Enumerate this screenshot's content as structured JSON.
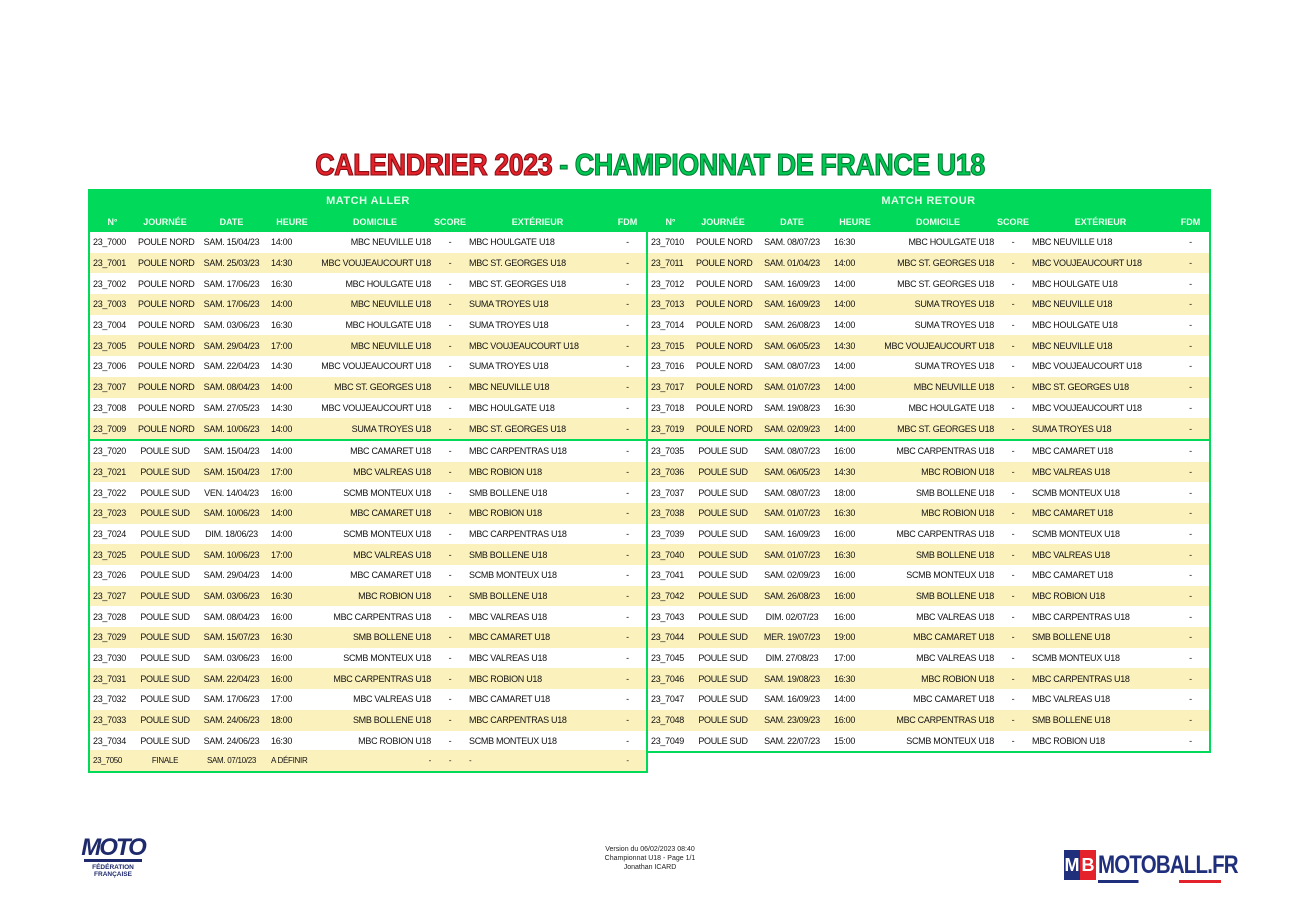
{
  "title": {
    "part1": "CALENDRIER 2023",
    "dash": " - ",
    "part2": "CHAMPIONNAT DE FRANCE U18"
  },
  "aller": {
    "label": "MATCH ALLER",
    "headers": [
      "N°",
      "JOURNÉE",
      "DATE",
      "HEURE",
      "DOMICILE",
      "SCORE",
      "EXTÉRIEUR",
      "FDM"
    ],
    "rows": [
      [
        "23_7000",
        "POULE NORD",
        "SAM. 15/04/23",
        "14:00",
        "MBC NEUVILLE U18",
        "-",
        "MBC HOULGATE U18",
        "-"
      ],
      [
        "23_7001",
        "POULE NORD",
        "SAM. 25/03/23",
        "14:30",
        "MBC VOUJEAUCOURT U18",
        "-",
        "MBC ST. GEORGES U18",
        "-"
      ],
      [
        "23_7002",
        "POULE NORD",
        "SAM. 17/06/23",
        "16:30",
        "MBC HOULGATE U18",
        "-",
        "MBC ST. GEORGES U18",
        "-"
      ],
      [
        "23_7003",
        "POULE NORD",
        "SAM. 17/06/23",
        "14:00",
        "MBC NEUVILLE U18",
        "-",
        "SUMA TROYES U18",
        "-"
      ],
      [
        "23_7004",
        "POULE NORD",
        "SAM. 03/06/23",
        "16:30",
        "MBC HOULGATE U18",
        "-",
        "SUMA TROYES U18",
        "-"
      ],
      [
        "23_7005",
        "POULE NORD",
        "SAM. 29/04/23",
        "17:00",
        "MBC NEUVILLE U18",
        "-",
        "MBC VOUJEAUCOURT U18",
        "-"
      ],
      [
        "23_7006",
        "POULE NORD",
        "SAM. 22/04/23",
        "14:30",
        "MBC VOUJEAUCOURT U18",
        "-",
        "SUMA TROYES U18",
        "-"
      ],
      [
        "23_7007",
        "POULE NORD",
        "SAM. 08/04/23",
        "14:00",
        "MBC ST. GEORGES U18",
        "-",
        "MBC NEUVILLE U18",
        "-"
      ],
      [
        "23_7008",
        "POULE NORD",
        "SAM. 27/05/23",
        "14:30",
        "MBC VOUJEAUCOURT U18",
        "-",
        "MBC HOULGATE U18",
        "-"
      ],
      [
        "23_7009",
        "POULE NORD",
        "SAM. 10/06/23",
        "14:00",
        "SUMA TROYES U18",
        "-",
        "MBC ST. GEORGES U18",
        "-"
      ],
      [
        "23_7020",
        "POULE SUD",
        "SAM. 15/04/23",
        "14:00",
        "MBC CAMARET U18",
        "-",
        "MBC CARPENTRAS U18",
        "-"
      ],
      [
        "23_7021",
        "POULE SUD",
        "SAM. 15/04/23",
        "17:00",
        "MBC VALREAS U18",
        "-",
        "MBC ROBION U18",
        "-"
      ],
      [
        "23_7022",
        "POULE SUD",
        "VEN. 14/04/23",
        "16:00",
        "SCMB MONTEUX U18",
        "-",
        "SMB BOLLENE U18",
        "-"
      ],
      [
        "23_7023",
        "POULE SUD",
        "SAM. 10/06/23",
        "14:00",
        "MBC CAMARET U18",
        "-",
        "MBC ROBION U18",
        "-"
      ],
      [
        "23_7024",
        "POULE SUD",
        "DIM. 18/06/23",
        "14:00",
        "SCMB MONTEUX U18",
        "-",
        "MBC CARPENTRAS U18",
        "-"
      ],
      [
        "23_7025",
        "POULE SUD",
        "SAM. 10/06/23",
        "17:00",
        "MBC VALREAS U18",
        "-",
        "SMB BOLLENE U18",
        "-"
      ],
      [
        "23_7026",
        "POULE SUD",
        "SAM. 29/04/23",
        "14:00",
        "MBC CAMARET U18",
        "-",
        "SCMB MONTEUX U18",
        "-"
      ],
      [
        "23_7027",
        "POULE SUD",
        "SAM. 03/06/23",
        "16:30",
        "MBC ROBION U18",
        "-",
        "SMB BOLLENE U18",
        "-"
      ],
      [
        "23_7028",
        "POULE SUD",
        "SAM. 08/04/23",
        "16:00",
        "MBC CARPENTRAS U18",
        "-",
        "MBC VALREAS U18",
        "-"
      ],
      [
        "23_7029",
        "POULE SUD",
        "SAM. 15/07/23",
        "16:30",
        "SMB BOLLENE U18",
        "-",
        "MBC CAMARET U18",
        "-"
      ],
      [
        "23_7030",
        "POULE SUD",
        "SAM. 03/06/23",
        "16:00",
        "SCMB MONTEUX U18",
        "-",
        "MBC VALREAS U18",
        "-"
      ],
      [
        "23_7031",
        "POULE SUD",
        "SAM. 22/04/23",
        "16:00",
        "MBC CARPENTRAS U18",
        "-",
        "MBC ROBION U18",
        "-"
      ],
      [
        "23_7032",
        "POULE SUD",
        "SAM. 17/06/23",
        "17:00",
        "MBC VALREAS U18",
        "-",
        "MBC CAMARET U18",
        "-"
      ],
      [
        "23_7033",
        "POULE SUD",
        "SAM. 24/06/23",
        "18:00",
        "SMB BOLLENE U18",
        "-",
        "MBC CARPENTRAS U18",
        "-"
      ],
      [
        "23_7034",
        "POULE SUD",
        "SAM. 24/06/23",
        "16:30",
        "MBC ROBION U18",
        "-",
        "SCMB MONTEUX U18",
        "-"
      ]
    ],
    "finale": [
      "23_7050",
      "FINALE",
      "SAM. 07/10/23",
      "A DÉFINIR",
      "-",
      "-",
      "-",
      "-"
    ]
  },
  "retour": {
    "label": "MATCH RETOUR",
    "headers": [
      "N°",
      "JOURNÉE",
      "DATE",
      "HEURE",
      "DOMICILE",
      "SCORE",
      "EXTÉRIEUR",
      "FDM"
    ],
    "rows": [
      [
        "23_7010",
        "POULE NORD",
        "SAM. 08/07/23",
        "16:30",
        "MBC HOULGATE U18",
        "-",
        "MBC NEUVILLE U18",
        "-"
      ],
      [
        "23_7011",
        "POULE NORD",
        "SAM. 01/04/23",
        "14:00",
        "MBC ST. GEORGES U18",
        "-",
        "MBC VOUJEAUCOURT U18",
        "-"
      ],
      [
        "23_7012",
        "POULE NORD",
        "SAM. 16/09/23",
        "14:00",
        "MBC ST. GEORGES U18",
        "-",
        "MBC HOULGATE U18",
        "-"
      ],
      [
        "23_7013",
        "POULE NORD",
        "SAM. 16/09/23",
        "14:00",
        "SUMA TROYES U18",
        "-",
        "MBC NEUVILLE U18",
        "-"
      ],
      [
        "23_7014",
        "POULE NORD",
        "SAM. 26/08/23",
        "14:00",
        "SUMA TROYES U18",
        "-",
        "MBC HOULGATE U18",
        "-"
      ],
      [
        "23_7015",
        "POULE NORD",
        "SAM. 06/05/23",
        "14:30",
        "MBC VOUJEAUCOURT U18",
        "-",
        "MBC NEUVILLE U18",
        "-"
      ],
      [
        "23_7016",
        "POULE NORD",
        "SAM. 08/07/23",
        "14:00",
        "SUMA TROYES U18",
        "-",
        "MBC VOUJEAUCOURT U18",
        "-"
      ],
      [
        "23_7017",
        "POULE NORD",
        "SAM. 01/07/23",
        "14:00",
        "MBC NEUVILLE U18",
        "-",
        "MBC ST. GEORGES U18",
        "-"
      ],
      [
        "23_7018",
        "POULE NORD",
        "SAM. 19/08/23",
        "16:30",
        "MBC HOULGATE U18",
        "-",
        "MBC VOUJEAUCOURT U18",
        "-"
      ],
      [
        "23_7019",
        "POULE NORD",
        "SAM. 02/09/23",
        "14:00",
        "MBC ST. GEORGES U18",
        "-",
        "SUMA TROYES U18",
        "-"
      ],
      [
        "23_7035",
        "POULE SUD",
        "SAM. 08/07/23",
        "16:00",
        "MBC CARPENTRAS U18",
        "-",
        "MBC CAMARET U18",
        "-"
      ],
      [
        "23_7036",
        "POULE SUD",
        "SAM. 06/05/23",
        "14:30",
        "MBC ROBION U18",
        "-",
        "MBC VALREAS U18",
        "-"
      ],
      [
        "23_7037",
        "POULE SUD",
        "SAM. 08/07/23",
        "18:00",
        "SMB BOLLENE U18",
        "-",
        "SCMB MONTEUX U18",
        "-"
      ],
      [
        "23_7038",
        "POULE SUD",
        "SAM. 01/07/23",
        "16:30",
        "MBC ROBION U18",
        "-",
        "MBC CAMARET U18",
        "-"
      ],
      [
        "23_7039",
        "POULE SUD",
        "SAM. 16/09/23",
        "16:00",
        "MBC CARPENTRAS U18",
        "-",
        "SCMB MONTEUX U18",
        "-"
      ],
      [
        "23_7040",
        "POULE SUD",
        "SAM. 01/07/23",
        "16:30",
        "SMB BOLLENE U18",
        "-",
        "MBC VALREAS U18",
        "-"
      ],
      [
        "23_7041",
        "POULE SUD",
        "SAM. 02/09/23",
        "16:00",
        "SCMB MONTEUX U18",
        "-",
        "MBC CAMARET U18",
        "-"
      ],
      [
        "23_7042",
        "POULE SUD",
        "SAM. 26/08/23",
        "16:00",
        "SMB BOLLENE U18",
        "-",
        "MBC ROBION U18",
        "-"
      ],
      [
        "23_7043",
        "POULE SUD",
        "DIM. 02/07/23",
        "16:00",
        "MBC VALREAS U18",
        "-",
        "MBC CARPENTRAS U18",
        "-"
      ],
      [
        "23_7044",
        "POULE SUD",
        "MER. 19/07/23",
        "19:00",
        "MBC CAMARET U18",
        "-",
        "SMB BOLLENE U18",
        "-"
      ],
      [
        "23_7045",
        "POULE SUD",
        "DIM. 27/08/23",
        "17:00",
        "MBC VALREAS U18",
        "-",
        "SCMB MONTEUX U18",
        "-"
      ],
      [
        "23_7046",
        "POULE SUD",
        "SAM. 19/08/23",
        "16:30",
        "MBC ROBION U18",
        "-",
        "MBC CARPENTRAS U18",
        "-"
      ],
      [
        "23_7047",
        "POULE SUD",
        "SAM. 16/09/23",
        "14:00",
        "MBC CAMARET U18",
        "-",
        "MBC VALREAS U18",
        "-"
      ],
      [
        "23_7048",
        "POULE SUD",
        "SAM. 23/09/23",
        "16:00",
        "MBC CARPENTRAS U18",
        "-",
        "SMB BOLLENE U18",
        "-"
      ],
      [
        "23_7049",
        "POULE SUD",
        "SAM. 22/07/23",
        "15:00",
        "SCMB MONTEUX U18",
        "-",
        "MBC ROBION U18",
        "-"
      ]
    ]
  },
  "footer": {
    "line1": "Version du 06/02/2023 08:40",
    "line2": "Championnat U18 - Page 1/1",
    "line3": "Jonathan ICARD"
  },
  "logos": {
    "ffm": {
      "word": "MOTO",
      "sub1": "FÉDÉRATION",
      "sub2": "FRANÇAISE"
    },
    "motoball": {
      "m": "M",
      "b": "B",
      "text": "MOTOBALL.FR"
    }
  },
  "colors": {
    "accent_green": "#00d95a",
    "stripe": "#fbf1bd",
    "title_red": "#e3222b",
    "navy": "#1f2f7c"
  }
}
